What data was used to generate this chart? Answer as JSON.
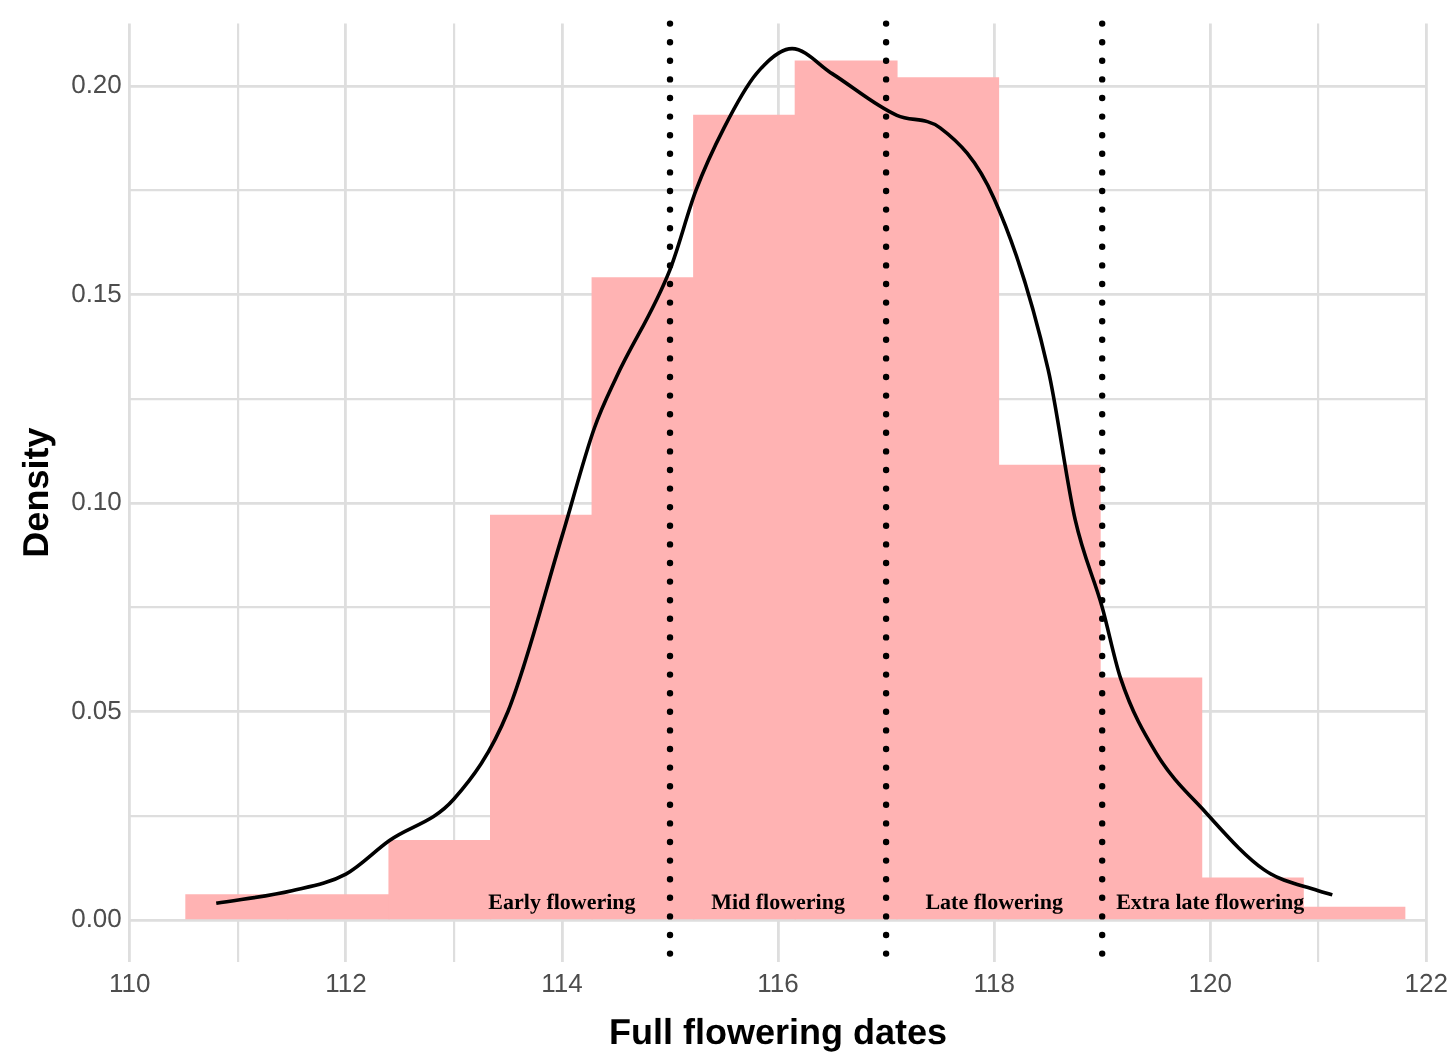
{
  "chart_data": {
    "type": "histogram",
    "xlabel": "Full flowering dates",
    "ylabel": "Density",
    "series": [
      {
        "color": "#ffb3b3",
        "bins": [
          110.52,
          111.46,
          112.4,
          113.34,
          114.28,
          115.22,
          116.16,
          117.1,
          118.04,
          118.98,
          119.92,
          120.86,
          121.8
        ],
        "values": [
          0.006,
          0.006,
          0.019,
          0.097,
          0.154,
          0.193,
          0.206,
          0.202,
          0.109,
          0.058,
          0.01,
          0.003
        ]
      },
      {
        "type": "line",
        "color": "#000000",
        "x": [
          110.8,
          111.5,
          112,
          112.4,
          113,
          113.5,
          114,
          114.3,
          114.5,
          115,
          115.24,
          115.5,
          115.8,
          116.13,
          116.5,
          117.1,
          117.5,
          118,
          118.5,
          118.75,
          119,
          119.17,
          119.5,
          119.95,
          120.5,
          121,
          121.13
        ],
        "values": [
          0.004,
          0.007,
          0.011,
          0.019,
          0.029,
          0.05,
          0.092,
          0.118,
          0.13,
          0.156,
          0.175,
          0.19,
          0.203,
          0.209,
          0.203,
          0.193,
          0.19,
          0.173,
          0.132,
          0.096,
          0.075,
          0.058,
          0.04,
          0.026,
          0.012,
          0.007,
          0.006
        ]
      }
    ],
    "xlim": [
      110,
      122
    ],
    "xticks": [
      110,
      {
        "value": 111,
        "label": null
      },
      112,
      {
        "value": 113,
        "label": null
      },
      114,
      116,
      118,
      120,
      {
        "value": 121,
        "label": null
      },
      122
    ],
    "ylim": [
      -0.01,
      0.215
    ],
    "yticks": [
      {
        "value": 0,
        "label": "0.00"
      },
      {
        "value": 0.025,
        "label": null
      },
      {
        "value": 0.05,
        "label": "0.05"
      },
      {
        "value": 0.075,
        "label": null
      },
      {
        "value": 0.1,
        "label": "0.10"
      },
      {
        "value": 0.125,
        "label": null
      },
      {
        "value": 0.15,
        "label": "0.15"
      },
      {
        "value": 0.175,
        "label": null
      },
      {
        "value": 0.2,
        "label": "0.20"
      }
    ],
    "grid": true,
    "legend": false,
    "ref_lines": [
      {
        "axis": "x",
        "value": 115,
        "line_style": "dotted",
        "color": "#000000"
      },
      {
        "axis": "x",
        "value": 117,
        "line_style": "dotted",
        "color": "#000000"
      },
      {
        "axis": "x",
        "value": 119,
        "line_style": "dotted",
        "color": "#000000"
      }
    ],
    "annotations": [
      "Early flowering",
      "Mid flowering",
      "Late flowering",
      "Extra late flowering"
    ]
  }
}
